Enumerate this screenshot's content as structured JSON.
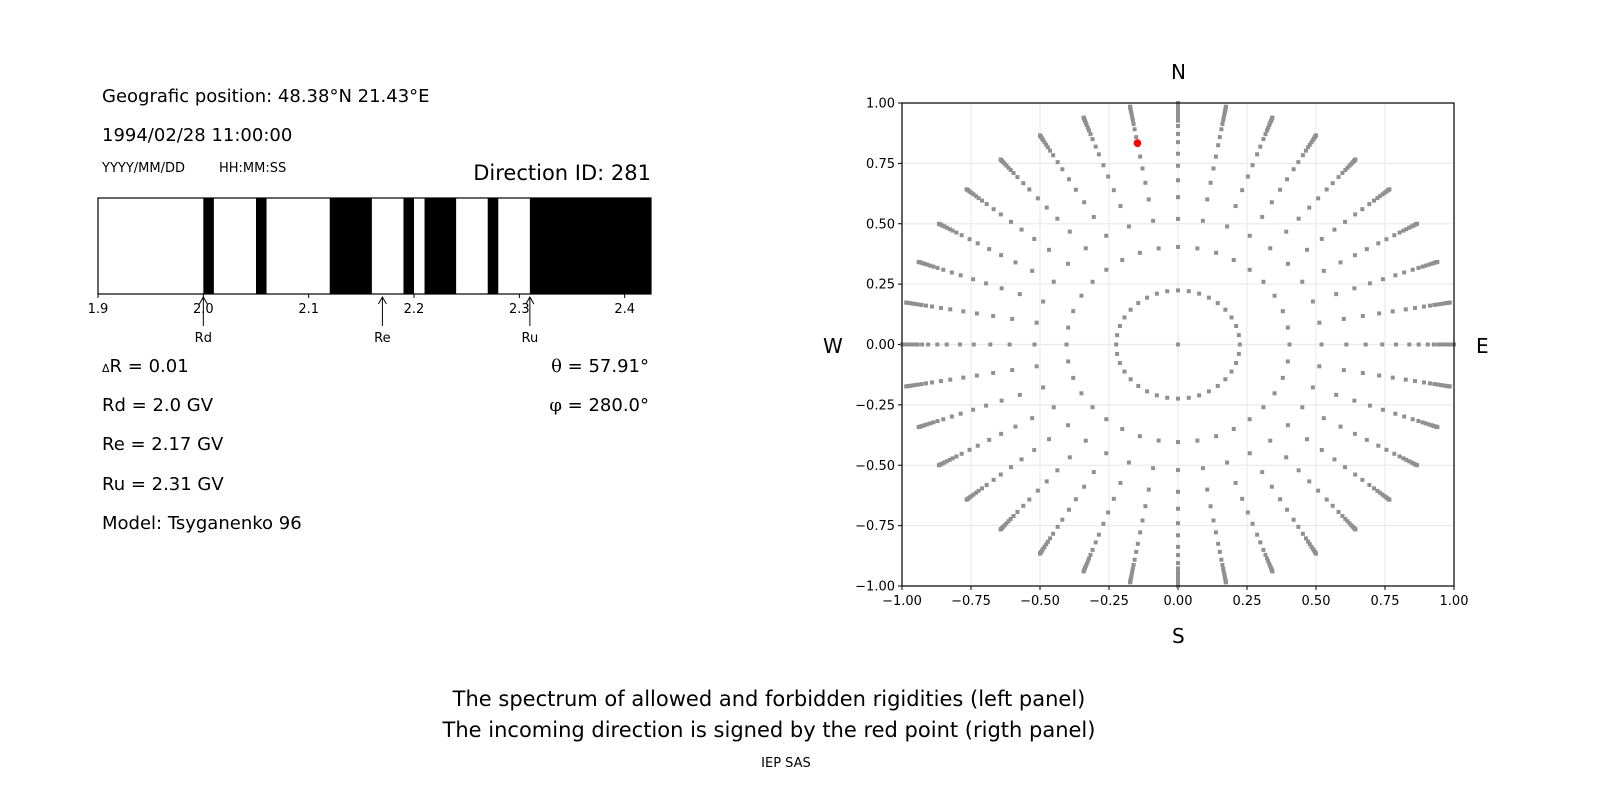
{
  "left_panel": {
    "geo_position": "Geografic position: 48.38°N 21.43°E",
    "datetime": "1994/02/28 11:00:00",
    "date_format": "YYYY/MM/DD",
    "time_format": "HH:MM:SS",
    "direction_id": "Direction ID: 281",
    "delta_r_symbol": "Δ",
    "delta_r": "R = 0.01",
    "rd": "Rd = 2.0 GV",
    "re": "Re = 2.17 GV",
    "ru": "Ru = 2.31 GV",
    "model": "Model: Tsyganenko 96",
    "theta_symbol": "θ",
    "theta": " = 57.91°",
    "phi_symbol": "φ",
    "phi": " = 280.0°"
  },
  "right_panel": {
    "north": "N",
    "south": "S",
    "west": "W",
    "east": "E"
  },
  "footer": {
    "line1": "The spectrum of allowed and forbidden rigidities (left panel)",
    "line2": "The incoming direction is signed by the red point (rigth panel)",
    "credit": "IEP SAS"
  },
  "chart_data": [
    {
      "type": "bar",
      "xlim": [
        1.9,
        2.425
      ],
      "ticks": [
        "1.9",
        "2.0",
        "2.1",
        "2.2",
        "2.3",
        "2.4"
      ],
      "forbidden_intervals": [
        [
          2.0,
          2.01
        ],
        [
          2.05,
          2.06
        ],
        [
          2.12,
          2.16
        ],
        [
          2.19,
          2.2
        ],
        [
          2.21,
          2.24
        ],
        [
          2.27,
          2.28
        ],
        [
          2.31,
          2.425
        ]
      ],
      "forbidden_color": "#000000",
      "allowed_color": "#ffffff",
      "markers": [
        {
          "label": "Rd",
          "value": 2.0
        },
        {
          "label": "Re",
          "value": 2.17
        },
        {
          "label": "Ru",
          "value": 2.31
        }
      ]
    },
    {
      "type": "scatter",
      "xlim": [
        -1,
        1
      ],
      "ylim": [
        -1,
        1
      ],
      "grid": true,
      "ticks": [
        "−1.00",
        "−0.75",
        "−0.50",
        "−0.25",
        "0.00",
        "0.25",
        "0.50",
        "0.75",
        "1.00"
      ],
      "tick_values": [
        -1,
        -0.75,
        -0.5,
        -0.25,
        0,
        0.25,
        0.5,
        0.75,
        1
      ],
      "grid_points": {
        "radii": [
          0.224,
          0.404,
          0.52,
          0.61,
          0.68,
          0.74,
          0.79,
          0.838,
          0.872,
          0.905,
          0.927,
          0.943,
          0.955,
          0.967,
          0.977,
          0.985,
          0.992,
          0.997,
          1.0
        ],
        "azimuth_step_deg": 10,
        "include_center": true,
        "color": "#909090"
      },
      "highlight_point": {
        "x": -0.147,
        "y": 0.834,
        "color": "#ff0000"
      }
    }
  ]
}
